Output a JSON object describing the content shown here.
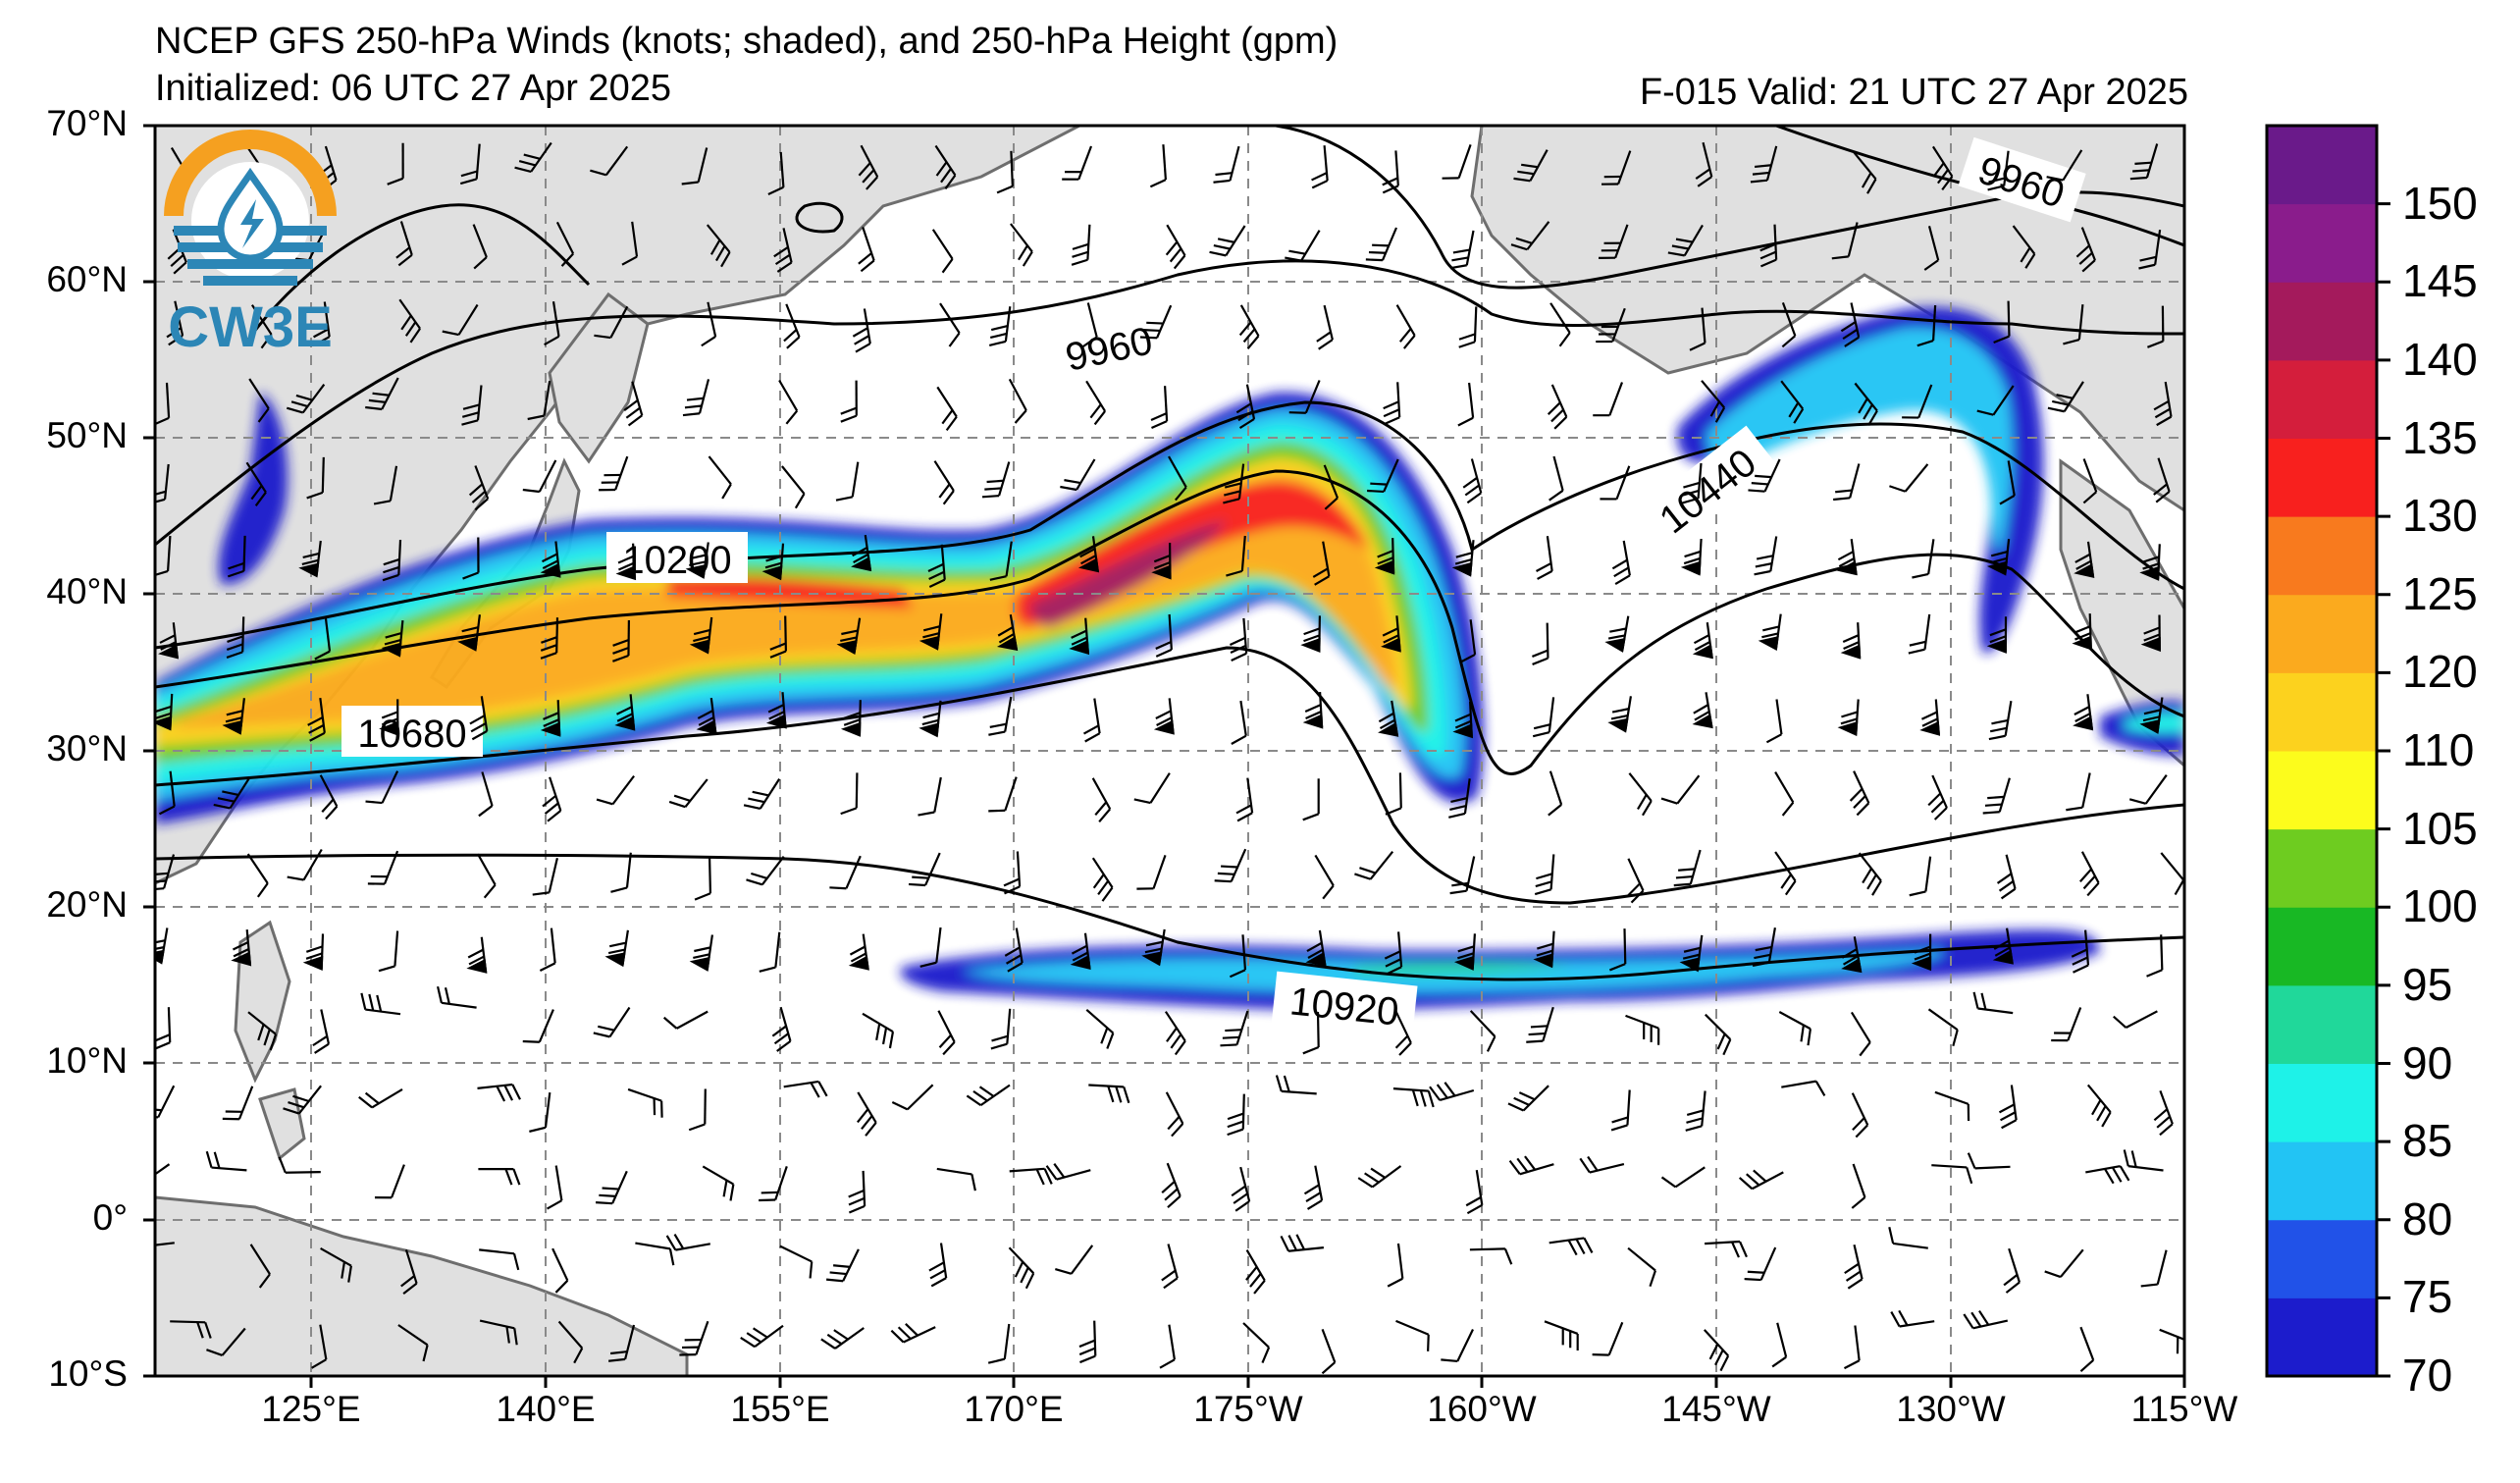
{
  "title": {
    "line1": "NCEP GFS 250-hPa Winds (knots; shaded), and 250-hPa Height (gpm)",
    "initialized": "Initialized: 06 UTC 27 Apr 2025",
    "valid": "F-015  Valid: 21 UTC 27 Apr 2025"
  },
  "logo": {
    "text": "CW3E",
    "icon": "water-drop-bolt-icon"
  },
  "lat_labels": [
    "70°N",
    "60°N",
    "50°N",
    "40°N",
    "30°N",
    "20°N",
    "10°N",
    "0°",
    "10°S"
  ],
  "lon_labels": [
    "125°E",
    "140°E",
    "155°E",
    "170°E",
    "175°W",
    "160°W",
    "145°W",
    "130°W",
    "115°W"
  ],
  "colorbar": {
    "levels": [
      70,
      75,
      80,
      85,
      90,
      95,
      100,
      105,
      110,
      120,
      125,
      130,
      135,
      140,
      145,
      150,
      155
    ],
    "labels": [
      "70",
      "75",
      "80",
      "85",
      "90",
      "95",
      "100",
      "105",
      "110",
      "120",
      "125",
      "130",
      "135",
      "140",
      "145",
      "150"
    ],
    "colors": [
      "#1c1ccc",
      "#2152e8",
      "#22c4f4",
      "#1ef2e8",
      "#20d89a",
      "#18b824",
      "#6ecc20",
      "#fcfc1c",
      "#fcd21e",
      "#fbaa1e",
      "#f87a1e",
      "#f8201e",
      "#d41e3c",
      "#a41a5c",
      "#8a1c8c",
      "#6a1a8a"
    ]
  },
  "contour_labels": [
    "9960",
    "9960",
    "10200",
    "10440",
    "10680",
    "10920"
  ],
  "colors": {
    "land": "#e0e0e0",
    "coast": "#6e6e6e",
    "grid": "#8a8a8a",
    "contour": "#000000",
    "logo_orange": "#f5a020",
    "logo_blue": "#2c86b6"
  }
}
